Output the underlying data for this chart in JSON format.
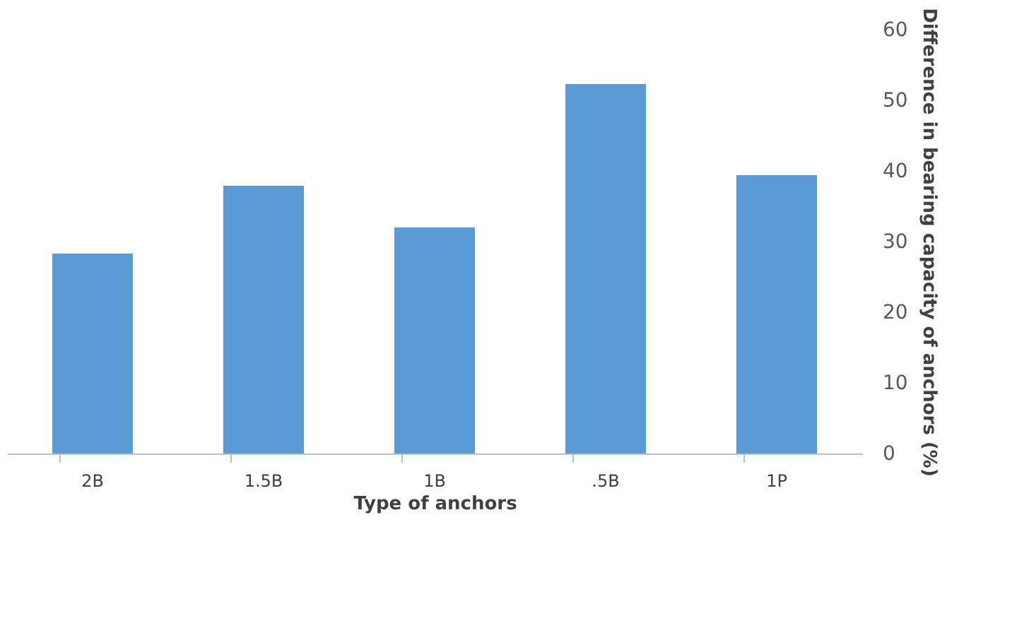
{
  "chart_data": {
    "type": "bar",
    "xlabel": "Type of  anchors",
    "ylabel": "Difference in bearing capacity of anchors (%)",
    "categories": [
      "2B",
      "1.5B",
      "1B",
      ".5B",
      "1P"
    ],
    "values": [
      28.3,
      37.9,
      32.0,
      52.3,
      39.4
    ],
    "color": "#5b9bd5",
    "ylim": [
      0,
      60
    ],
    "yticks": [
      0,
      10,
      20,
      30,
      40,
      50,
      60
    ],
    "grid": false
  }
}
